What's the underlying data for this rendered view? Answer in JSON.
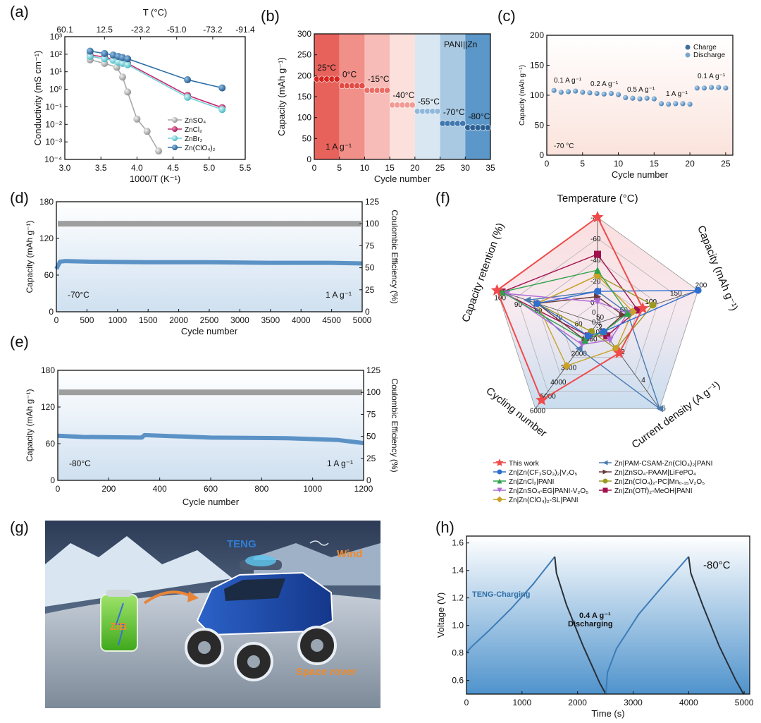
{
  "panels": {
    "a": "(a)",
    "b": "(b)",
    "c": "(c)",
    "d": "(d)",
    "e": "(e)",
    "f": "(f)",
    "g": "(g)",
    "h": "(h)"
  },
  "colors": {
    "gray": "#a8a8a8",
    "magenta": "#c8286e",
    "cyan": "#72d3dc",
    "blue": "#2f6fa6",
    "red": "#ef4b4b",
    "cycleBlue": "#5b92c6"
  },
  "chart_data": [
    {
      "id": "a",
      "type": "scatter",
      "xlabel": "1000/T (K⁻¹)",
      "ylabel": "Conductivity (mS cm⁻¹)",
      "top_xlabel": "T (°C)",
      "top_ticks": [
        "60.1",
        "12.5",
        "-23.2",
        "-51.0",
        "-73.2",
        "-91.4"
      ],
      "xlim": [
        3.0,
        5.5
      ],
      "xticks": [
        "3.0",
        "3.5",
        "4.0",
        "4.5",
        "5.0",
        "5.5"
      ],
      "ylim_log": [
        -4,
        3
      ],
      "yticks": [
        "10⁻⁴",
        "10⁻³",
        "10⁻²",
        "10⁻¹",
        "10⁰",
        "10¹",
        "10²",
        "10³"
      ],
      "log_y": true,
      "legend": "bottom-right",
      "series": [
        {
          "name": "ZnSO₄",
          "x": [
            3.35,
            3.55,
            3.72,
            3.8,
            3.87,
            4.0,
            4.14,
            4.3
          ],
          "y": [
            48,
            30,
            18,
            5,
            0.7,
            0.02,
            0.004,
            0.0003
          ]
        },
        {
          "name": "ZnCl₂",
          "x": [
            3.35,
            3.55,
            3.67,
            3.74,
            3.8,
            3.87,
            4.7,
            5.18
          ],
          "y": [
            90,
            70,
            50,
            40,
            35,
            30,
            0.45,
            0.09
          ]
        },
        {
          "name": "ZnBr₂",
          "x": [
            3.35,
            3.55,
            3.67,
            3.74,
            3.8,
            3.87,
            4.7,
            5.18
          ],
          "y": [
            75,
            55,
            45,
            35,
            30,
            25,
            0.35,
            0.07
          ]
        },
        {
          "name": "Zn(ClO₄)₂",
          "x": [
            3.35,
            3.55,
            3.67,
            3.74,
            3.8,
            3.87,
            4.7,
            5.18
          ],
          "y": [
            150,
            110,
            90,
            75,
            65,
            55,
            3.5,
            1.2
          ]
        }
      ]
    },
    {
      "id": "b",
      "type": "scatter",
      "xlabel": "Cycle number",
      "ylabel": "Capacity (mAh g⁻¹)",
      "xlim": [
        0,
        35
      ],
      "ylim": [
        0,
        300
      ],
      "xticks": [
        "0",
        "5",
        "10",
        "15",
        "20",
        "25",
        "30",
        "35"
      ],
      "yticks": [
        "0",
        "50",
        "100",
        "150",
        "200",
        "250",
        "300"
      ],
      "annotation_label": "PANI||Zn",
      "rate_label": "1 A g⁻¹",
      "segments": [
        {
          "temp": "25°C",
          "range": [
            0,
            5
          ],
          "capacity": 192
        },
        {
          "temp": "0°C",
          "range": [
            5,
            10
          ],
          "capacity": 176
        },
        {
          "temp": "-15°C",
          "range": [
            10,
            15
          ],
          "capacity": 165
        },
        {
          "temp": "-40°C",
          "range": [
            15,
            20
          ],
          "capacity": 130
        },
        {
          "temp": "-55°C",
          "range": [
            20,
            25
          ],
          "capacity": 115
        },
        {
          "temp": "-70°C",
          "range": [
            25,
            30
          ],
          "capacity": 86
        },
        {
          "temp": "-80°C",
          "range": [
            30,
            35
          ],
          "capacity": 76
        }
      ]
    },
    {
      "id": "c",
      "type": "scatter",
      "xlabel": "Cycle number",
      "ylabel": "Capacity (mAh g⁻¹)",
      "xlim": [
        0,
        26
      ],
      "ylim": [
        0,
        200
      ],
      "xticks": [
        "0",
        "5",
        "10",
        "15",
        "20",
        "25"
      ],
      "yticks": [
        "0",
        "50",
        "100",
        "150",
        "200"
      ],
      "temp_label": "-70 °C",
      "legend": [
        "Charge",
        "Discharge"
      ],
      "rate_labels": [
        "0.1 A g⁻¹",
        "0.2 A g⁻¹",
        "0.5 A g⁻¹",
        "1 A g⁻¹",
        "0.1 A g⁻¹"
      ],
      "values": [
        108,
        105,
        106,
        107,
        105,
        104,
        103,
        102,
        103,
        101,
        96,
        95,
        94,
        95,
        94,
        86,
        85,
        86,
        86,
        85,
        112,
        112,
        113,
        113,
        112
      ]
    },
    {
      "id": "d",
      "type": "line",
      "xlabel": "Cycle number",
      "ylabel": "Capacity (mAh g⁻¹)",
      "ylabel_right": "Coulombic Efficiency (%)",
      "xlim": [
        0,
        5000
      ],
      "ylim": [
        0,
        180
      ],
      "ylim_right": [
        0,
        125
      ],
      "xticks": [
        "0",
        "500",
        "1000",
        "1500",
        "2000",
        "2500",
        "3000",
        "3500",
        "4000",
        "4500",
        "5000"
      ],
      "yticks": [
        "0",
        "60",
        "120",
        "180"
      ],
      "yticks_right": [
        "0",
        "25",
        "50",
        "75",
        "100",
        "125"
      ],
      "temp_label": "-70°C",
      "rate_label": "1 A g⁻¹",
      "capacity": {
        "x": [
          0,
          60,
          150,
          500,
          1500,
          2500,
          3500,
          4500,
          5000
        ],
        "y": [
          70,
          82,
          83,
          82,
          81,
          81,
          80,
          80,
          79
        ]
      },
      "efficiency": 100
    },
    {
      "id": "e",
      "type": "line",
      "xlabel": "Cycle number",
      "ylabel": "Capacity (mAh g⁻¹)",
      "ylabel_right": "Coulombic Efficiency (%)",
      "xlim": [
        0,
        1200
      ],
      "ylim": [
        0,
        180
      ],
      "ylim_right": [
        0,
        125
      ],
      "xticks": [
        "0",
        "200",
        "400",
        "600",
        "800",
        "1000",
        "1200"
      ],
      "yticks": [
        "0",
        "60",
        "120",
        "180"
      ],
      "yticks_right": [
        "0",
        "25",
        "50",
        "75",
        "100",
        "125"
      ],
      "temp_label": "-80°C",
      "rate_label": "1 A g⁻¹",
      "capacity": {
        "x": [
          0,
          100,
          330,
          340,
          600,
          900,
          1100,
          1200
        ],
        "y": [
          73,
          71,
          70,
          74,
          70,
          69,
          66,
          61
        ]
      },
      "efficiency": 100
    },
    {
      "id": "f",
      "type": "radar",
      "axes": [
        "Temperature (°C)",
        "Capacity (mAh g⁻¹)",
        "Current density (A g⁻¹)",
        "Cycling number",
        "Capacity retention (%)"
      ],
      "temp_ticks": [
        "-80",
        "-60",
        "-40",
        "-20",
        "0"
      ],
      "capacity_ticks": [
        "50",
        "100",
        "150",
        "200"
      ],
      "current_ticks": [
        "2",
        "4",
        "6"
      ],
      "cycling_ticks": [
        "1000",
        "2000",
        "3000",
        "4000",
        "5000",
        "6000"
      ],
      "retention_ticks": [
        "60",
        "70",
        "80",
        "90",
        "100"
      ],
      "center_labels": [
        "0",
        "50",
        "0.1",
        "-2",
        "1000"
      ],
      "series": [
        {
          "name": "This work",
          "values": [
            1.0,
            0.45,
            0.35,
            0.9,
            1.0
          ]
        },
        {
          "name": "Zn|Zn(CF₃SO₃)₂|V₂O₅",
          "values": [
            0.3,
            1.0,
            0.1,
            0.15,
            0.6
          ]
        },
        {
          "name": "Zn|ZnCl₂|PANI",
          "values": [
            0.5,
            0.3,
            0.1,
            0.2,
            0.95
          ]
        },
        {
          "name": "Zn|ZnSO₄-EG|PANI-V₂O₅",
          "values": [
            0.2,
            0.3,
            0.2,
            0.25,
            0.9
          ]
        },
        {
          "name": "Zn|Zn(ClO₄)₂-SL|PANI",
          "values": [
            0.45,
            0.35,
            0.3,
            0.5,
            0.6
          ]
        },
        {
          "name": "Zn|PAM-CSAM-Zn(ClO₄)₂|PANI",
          "values": [
            0.3,
            0.3,
            1.0,
            0.3,
            0.7
          ]
        },
        {
          "name": "Zn|ZnSO₄-PAAM|LiFePO₄",
          "values": [
            0.25,
            0.25,
            0.1,
            0.2,
            0.6
          ]
        },
        {
          "name": "Zn|Zn(ClO₄)₂-PC|Mn₀.₁₅V₂O₅",
          "values": [
            0.45,
            0.55,
            0.3,
            0.1,
            0.6
          ]
        },
        {
          "name": "Zn|Zn(OTf)₂-MeOH|PANI",
          "values": [
            0.65,
            0.4,
            0.15,
            0.15,
            0.95
          ]
        }
      ]
    },
    {
      "id": "h",
      "type": "line",
      "xlabel": "Time (s)",
      "ylabel": "Voltage (V)",
      "xlim": [
        0,
        5100
      ],
      "ylim": [
        0.5,
        1.65
      ],
      "xticks": [
        "0",
        "1000",
        "2000",
        "3000",
        "4000",
        "5000"
      ],
      "yticks": [
        "0.6",
        "0.8",
        "1.0",
        "1.2",
        "1.4",
        "1.6"
      ],
      "temp_label": "-80°C",
      "charge_label": "TENG-Charging",
      "discharge_rate": "0.4 A g⁻¹",
      "discharge_label": "Discharging",
      "charge1": {
        "x": [
          0,
          80,
          400,
          800,
          1200,
          1590
        ],
        "y": [
          0.8,
          0.84,
          0.96,
          1.12,
          1.3,
          1.5
        ]
      },
      "discharge1": {
        "x": [
          1590,
          1620,
          1800,
          2100,
          2400,
          2510
        ],
        "y": [
          1.5,
          1.38,
          1.15,
          0.85,
          0.58,
          0.5
        ]
      },
      "charge2": {
        "x": [
          2510,
          2540,
          2700,
          3100,
          3500,
          4000
        ],
        "y": [
          0.5,
          0.66,
          0.83,
          1.08,
          1.27,
          1.5
        ]
      },
      "discharge2": {
        "x": [
          4000,
          4040,
          4250,
          4550,
          4850,
          4990
        ],
        "y": [
          1.5,
          1.38,
          1.15,
          0.85,
          0.6,
          0.5
        ]
      }
    }
  ],
  "illustration": {
    "teng_label": "TENG",
    "wind_label": "Wind",
    "zib_label": "ZIB",
    "rover_label": "Space rover"
  }
}
